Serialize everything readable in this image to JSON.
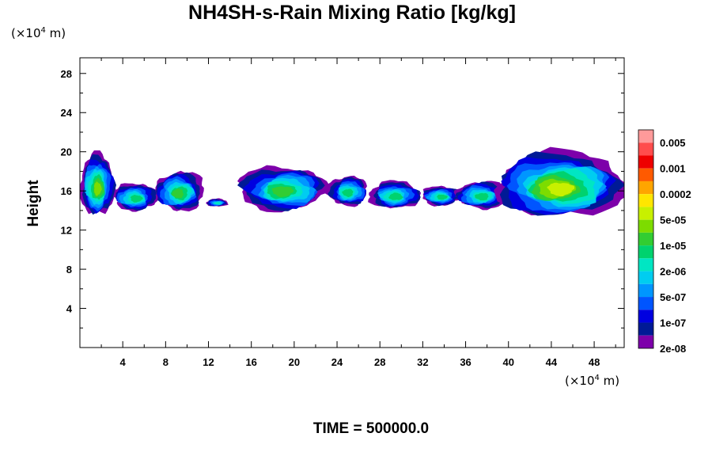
{
  "chart_data": {
    "type": "heatmap",
    "title": "NH4SH-s-Rain Mixing Ratio [kg/kg]",
    "ylabel": "Height",
    "x_unit": {
      "prefix": "(×10",
      "exp": "4",
      "suffix": " m)"
    },
    "y_unit": {
      "prefix": "(×10",
      "exp": "4",
      "suffix": " m)"
    },
    "xlim": [
      0,
      50.8
    ],
    "ylim": [
      0,
      29.6
    ],
    "x_ticks": [
      4,
      8,
      12,
      16,
      20,
      24,
      28,
      32,
      36,
      40,
      44,
      48
    ],
    "y_ticks": [
      4,
      8,
      12,
      16,
      20,
      24,
      28
    ],
    "x_minor_step": 2,
    "y_minor_step": 2,
    "grid": false,
    "time_label": "TIME = 500000.0",
    "colorbar": {
      "colors": [
        "#ff9a9a",
        "#ff4d4d",
        "#ee0000",
        "#ff5a00",
        "#ffa500",
        "#ffe600",
        "#c8f000",
        "#7ddc00",
        "#32cd32",
        "#00d26e",
        "#00e6c3",
        "#00cdf0",
        "#0096ff",
        "#0055ff",
        "#0000e0",
        "#001a96",
        "#7d00aa"
      ],
      "labels": [
        "0.005",
        "0.001",
        "0.0002",
        "5e-05",
        "1e-05",
        "2e-06",
        "5e-07",
        "1e-07",
        "2e-08"
      ]
    },
    "clouds": [
      {
        "x": [
          0,
          3.2
        ],
        "y": [
          13.5,
          19.8
        ],
        "level": 4
      },
      {
        "x": [
          3.0,
          7.2
        ],
        "y": [
          14.0,
          16.8
        ],
        "level": 2
      },
      {
        "x": [
          7.0,
          11.5
        ],
        "y": [
          14.0,
          18.0
        ],
        "level": 3
      },
      {
        "x": [
          11.8,
          13.8
        ],
        "y": [
          14.4,
          15.2
        ],
        "level": 1
      },
      {
        "x": [
          15.0,
          23.2
        ],
        "y": [
          14.0,
          18.5
        ],
        "level": 3
      },
      {
        "x": [
          23.2,
          27.0
        ],
        "y": [
          14.5,
          17.5
        ],
        "level": 2
      },
      {
        "x": [
          27.0,
          31.8
        ],
        "y": [
          14.2,
          17.0
        ],
        "level": 2
      },
      {
        "x": [
          31.8,
          35.5
        ],
        "y": [
          14.5,
          16.5
        ],
        "level": 2
      },
      {
        "x": [
          35.0,
          39.8
        ],
        "y": [
          14.2,
          17.0
        ],
        "level": 2
      },
      {
        "x": [
          38.8,
          50.8
        ],
        "y": [
          13.3,
          20.0
        ],
        "level": 5
      }
    ]
  }
}
